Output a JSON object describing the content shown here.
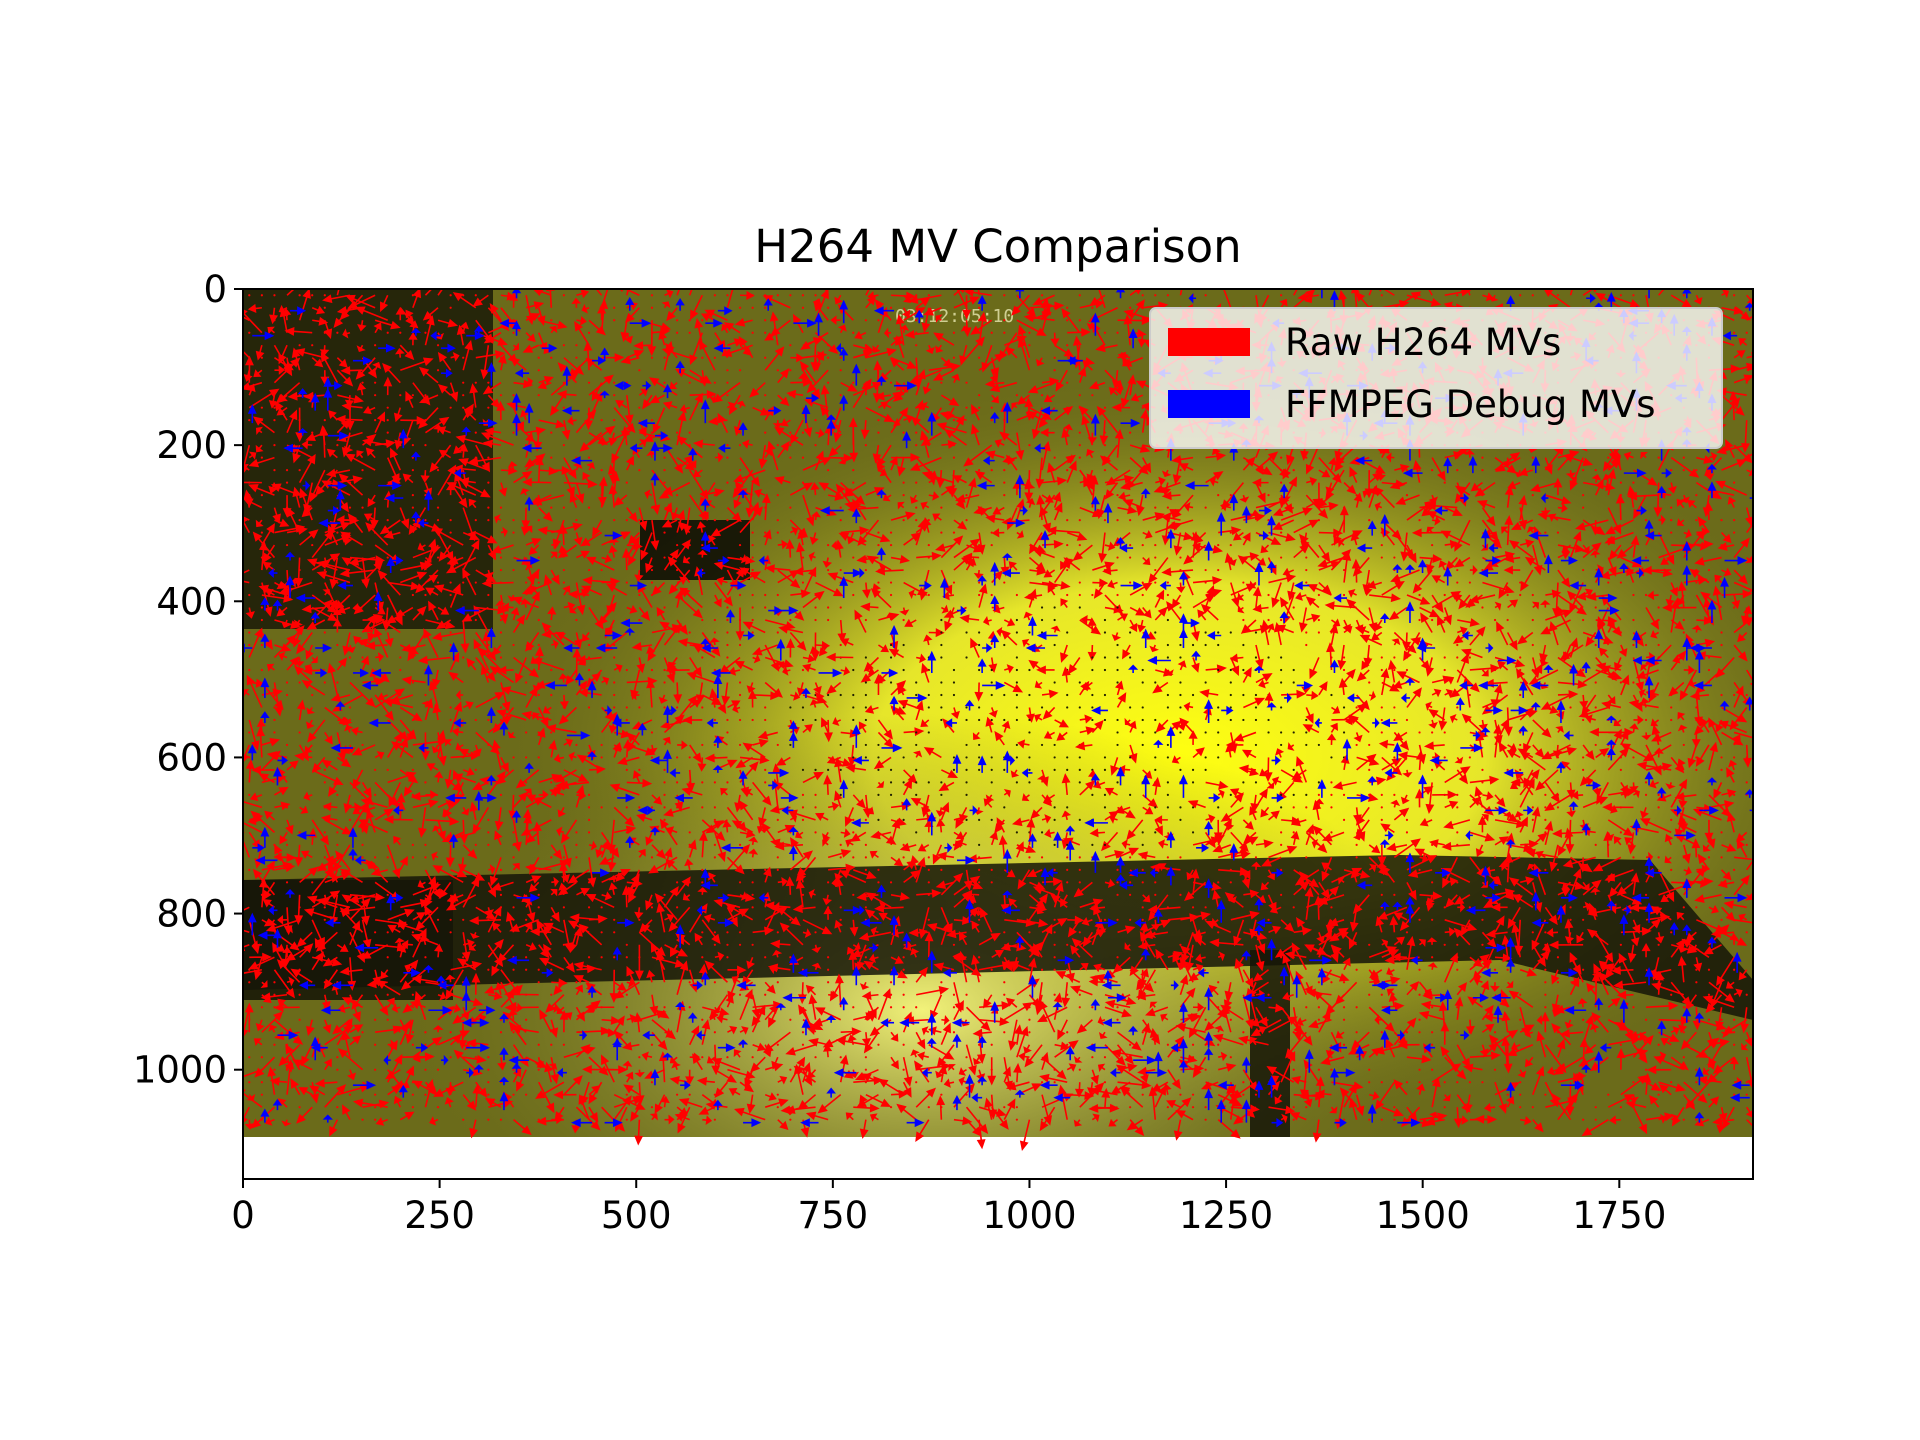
{
  "chart_data": {
    "type": "quiver",
    "title": "H264 MV Comparison",
    "xlabel": "",
    "ylabel": "",
    "xlim": [
      0,
      1920
    ],
    "ylim": [
      1140,
      0
    ],
    "image_extent": {
      "x": [
        0,
        1920
      ],
      "y": [
        0,
        1080
      ]
    },
    "y_inverted": true,
    "grid": false,
    "legend_placement": "upper right",
    "xticks": [
      0,
      250,
      500,
      750,
      1000,
      1250,
      1500,
      1750
    ],
    "yticks": [
      0,
      200,
      400,
      600,
      800,
      1000
    ],
    "series": [
      {
        "name": "Raw H264 MVs",
        "color": "#ff0000",
        "block_size": 16
      },
      {
        "name": "FFMPEG Debug MVs",
        "color": "#0000ff",
        "block_size": 16
      }
    ],
    "overlay_text": "03:12:05:10"
  },
  "colors": {
    "raw": "#ff0000",
    "ffmpeg": "#0000ff",
    "background_dark": "#1a1a08",
    "background_olive": "#6b6b1a",
    "background_bright": "#ffff20"
  }
}
